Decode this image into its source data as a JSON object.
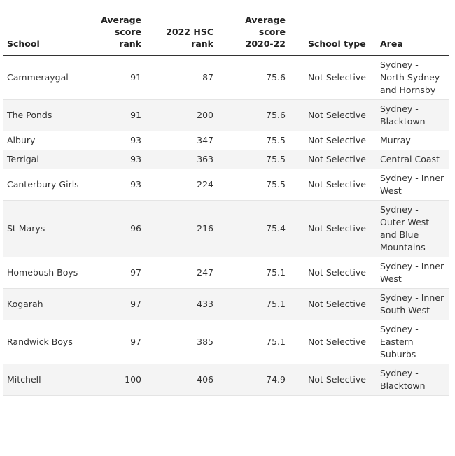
{
  "columns": {
    "school": "School",
    "avg_rank": "Average score rank",
    "hsc_rank": "2022 HSC rank",
    "avg_score": "Average score 2020-22",
    "type": "School type",
    "area": "Area"
  },
  "rows": [
    {
      "school": "Cammeraygal",
      "avg_rank": "91",
      "hsc_rank": "87",
      "avg_score": "75.6",
      "type": "Not Selective",
      "area": "Sydney - North Sydney and Hornsby"
    },
    {
      "school": "The Ponds",
      "avg_rank": "91",
      "hsc_rank": "200",
      "avg_score": "75.6",
      "type": "Not Selective",
      "area": "Sydney - Blacktown"
    },
    {
      "school": "Albury",
      "avg_rank": "93",
      "hsc_rank": "347",
      "avg_score": "75.5",
      "type": "Not Selective",
      "area": "Murray"
    },
    {
      "school": "Terrigal",
      "avg_rank": "93",
      "hsc_rank": "363",
      "avg_score": "75.5",
      "type": "Not Selective",
      "area": "Central Coast"
    },
    {
      "school": "Canterbury Girls",
      "avg_rank": "93",
      "hsc_rank": "224",
      "avg_score": "75.5",
      "type": "Not Selective",
      "area": "Sydney - Inner West"
    },
    {
      "school": "St Marys",
      "avg_rank": "96",
      "hsc_rank": "216",
      "avg_score": "75.4",
      "type": "Not Selective",
      "area": "Sydney - Outer West and Blue Mountains"
    },
    {
      "school": "Homebush Boys",
      "avg_rank": "97",
      "hsc_rank": "247",
      "avg_score": "75.1",
      "type": "Not Selective",
      "area": "Sydney - Inner West"
    },
    {
      "school": "Kogarah",
      "avg_rank": "97",
      "hsc_rank": "433",
      "avg_score": "75.1",
      "type": "Not Selective",
      "area": "Sydney - Inner South West"
    },
    {
      "school": "Randwick Boys",
      "avg_rank": "97",
      "hsc_rank": "385",
      "avg_score": "75.1",
      "type": "Not Selective",
      "area": "Sydney - Eastern Suburbs"
    },
    {
      "school": "Mitchell",
      "avg_rank": "100",
      "hsc_rank": "406",
      "avg_score": "74.9",
      "type": "Not Selective",
      "area": "Sydney - Blacktown"
    }
  ]
}
